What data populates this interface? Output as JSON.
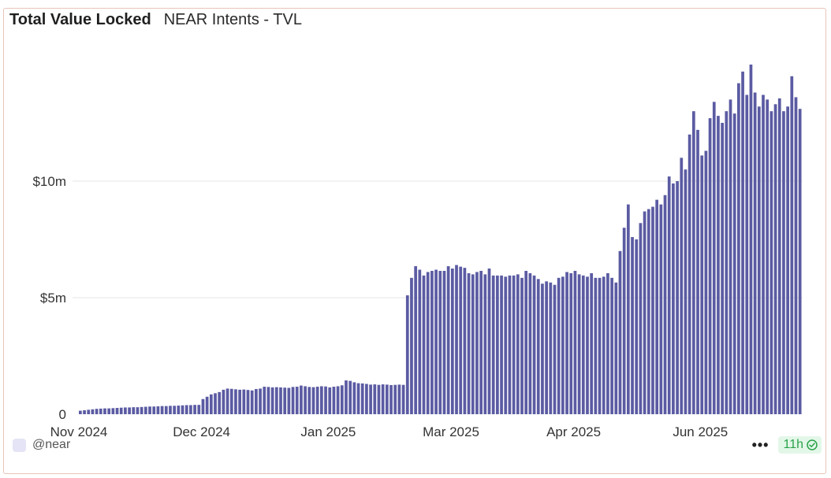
{
  "header": {
    "title": "Total Value Locked",
    "subtitle": "NEAR Intents - TVL"
  },
  "footer": {
    "user": "@near",
    "more": "•••",
    "freshness": "11h"
  },
  "colors": {
    "bar": "#5b5ba3",
    "grid": "#e6e6e6",
    "axis_text": "#333333"
  },
  "chart_data": {
    "type": "bar",
    "title": "Total Value Locked",
    "subtitle": "NEAR Intents - TVL",
    "xlabel": "",
    "ylabel": "",
    "ylim": [
      0,
      15000000
    ],
    "y_ticks": [
      {
        "value": 0,
        "label": "0"
      },
      {
        "value": 5000000,
        "label": "$5m"
      },
      {
        "value": 10000000,
        "label": "$10m"
      }
    ],
    "x_ticks": [
      {
        "index": 0,
        "label": "Nov 2024"
      },
      {
        "index": 30,
        "label": "Dec 2024"
      },
      {
        "index": 61,
        "label": "Jan 2025"
      },
      {
        "index": 91,
        "label": "Mar 2025"
      },
      {
        "index": 121,
        "label": "Apr 2025"
      },
      {
        "index": 152,
        "label": "Jun 2025"
      }
    ],
    "grid": true,
    "series": [
      {
        "name": "TVL",
        "unit": "USD",
        "values": [
          150000,
          170000,
          190000,
          210000,
          230000,
          240000,
          250000,
          250000,
          260000,
          270000,
          280000,
          290000,
          290000,
          300000,
          300000,
          310000,
          320000,
          330000,
          330000,
          340000,
          350000,
          350000,
          360000,
          360000,
          370000,
          380000,
          390000,
          390000,
          400000,
          400000,
          650000,
          750000,
          850000,
          900000,
          950000,
          1050000,
          1100000,
          1090000,
          1070000,
          1050000,
          1060000,
          1040000,
          1020000,
          1080000,
          1100000,
          1180000,
          1170000,
          1150000,
          1160000,
          1150000,
          1140000,
          1130000,
          1170000,
          1180000,
          1230000,
          1200000,
          1170000,
          1160000,
          1180000,
          1200000,
          1190000,
          1150000,
          1180000,
          1200000,
          1240000,
          1450000,
          1430000,
          1370000,
          1330000,
          1320000,
          1300000,
          1270000,
          1280000,
          1260000,
          1280000,
          1270000,
          1250000,
          1260000,
          1270000,
          1260000,
          5100000,
          5850000,
          6350000,
          6200000,
          5950000,
          6100000,
          6150000,
          6200000,
          6150000,
          6150000,
          6350000,
          6250000,
          6400000,
          6330000,
          6280000,
          6050000,
          6000000,
          6100000,
          6150000,
          6000000,
          6250000,
          5950000,
          5950000,
          5950000,
          5900000,
          5950000,
          5950000,
          6000000,
          5850000,
          6150000,
          6050000,
          5950000,
          5800000,
          5600000,
          5700000,
          5650000,
          5550000,
          5850000,
          5900000,
          6100000,
          6050000,
          6150000,
          6000000,
          5950000,
          5900000,
          6050000,
          5850000,
          5850000,
          5900000,
          6050000,
          5850000,
          5650000,
          7000000,
          8000000,
          9000000,
          7600000,
          7500000,
          8200000,
          8700000,
          8800000,
          8900000,
          9200000,
          9000000,
          9400000,
          10200000,
          9900000,
          10000000,
          11000000,
          10500000,
          12000000,
          13000000,
          12200000,
          11100000,
          11300000,
          12700000,
          13400000,
          12800000,
          12500000,
          13000000,
          13500000,
          12900000,
          14200000,
          14700000,
          13700000,
          15000000,
          13800000,
          13200000,
          13700000,
          13500000,
          13000000,
          13300000,
          13550000,
          13000000,
          13200000,
          14500000,
          13600000,
          13100000
        ]
      }
    ]
  }
}
